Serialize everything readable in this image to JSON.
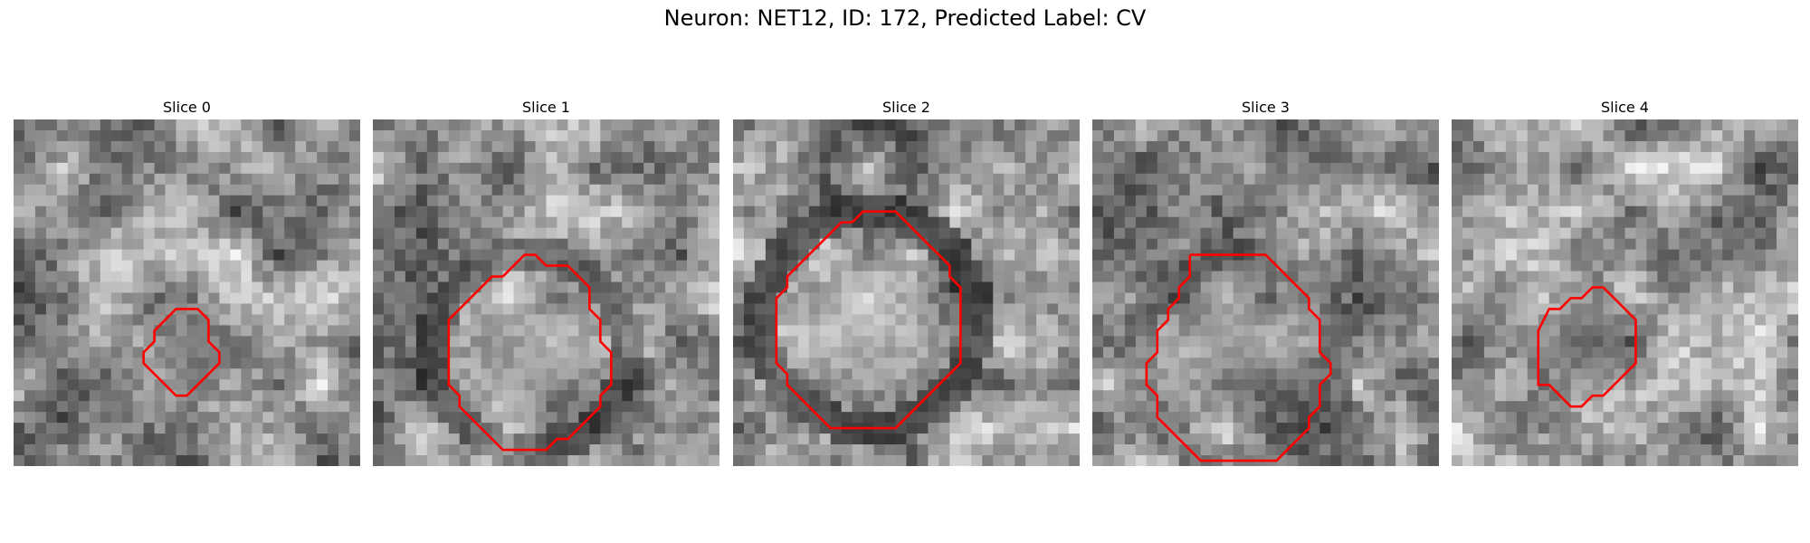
{
  "figure": {
    "title": "Neuron: NET12, ID: 172, Predicted Label: CV"
  },
  "panels": [
    {
      "title": "Slice 0",
      "contour": [
        [
          16,
          17.5
        ],
        [
          17,
          17.5
        ],
        [
          18,
          18.5
        ],
        [
          18,
          20.5
        ],
        [
          19,
          21.5
        ],
        [
          19,
          22.5
        ],
        [
          18,
          23.5
        ],
        [
          17,
          24.5
        ],
        [
          16,
          25.5
        ],
        [
          15,
          25.5
        ],
        [
          14,
          24.5
        ],
        [
          13,
          23.5
        ],
        [
          12,
          22.5
        ],
        [
          12,
          21.5
        ],
        [
          13,
          20.5
        ],
        [
          13,
          19.5
        ],
        [
          14,
          18.5
        ],
        [
          15,
          17.5
        ]
      ],
      "seed": 11
    },
    {
      "title": "Slice 1",
      "contour": [
        [
          12,
          14.5
        ],
        [
          13,
          13.5
        ],
        [
          14,
          12.5
        ],
        [
          15,
          12.5
        ],
        [
          16,
          13.5
        ],
        [
          18,
          13.5
        ],
        [
          19,
          14.5
        ],
        [
          20,
          15.5
        ],
        [
          20,
          17.5
        ],
        [
          21,
          18.5
        ],
        [
          21,
          20.5
        ],
        [
          22,
          21.5
        ],
        [
          22,
          24.5
        ],
        [
          21,
          25.5
        ],
        [
          21,
          26.5
        ],
        [
          20,
          27.5
        ],
        [
          19,
          28.5
        ],
        [
          18,
          29.5
        ],
        [
          17,
          29.5
        ],
        [
          16,
          30.5
        ],
        [
          12,
          30.5
        ],
        [
          11,
          29.5
        ],
        [
          10,
          28.5
        ],
        [
          9,
          27.5
        ],
        [
          8,
          26.5
        ],
        [
          8,
          25.5
        ],
        [
          7,
          24.5
        ],
        [
          7,
          18.5
        ],
        [
          8,
          17.5
        ],
        [
          9,
          16.5
        ],
        [
          10,
          15.5
        ],
        [
          11,
          14.5
        ]
      ],
      "seed": 23
    },
    {
      "title": "Slice 2",
      "contour": [
        [
          11,
          9.5
        ],
        [
          12,
          8.5
        ],
        [
          15,
          8.5
        ],
        [
          16,
          9.5
        ],
        [
          17,
          10.5
        ],
        [
          18,
          11.5
        ],
        [
          19,
          12.5
        ],
        [
          20,
          13.5
        ],
        [
          20,
          14.5
        ],
        [
          21,
          15.5
        ],
        [
          21,
          22.5
        ],
        [
          20,
          23.5
        ],
        [
          19,
          24.5
        ],
        [
          18,
          25.5
        ],
        [
          17,
          26.5
        ],
        [
          16,
          27.5
        ],
        [
          15,
          28.5
        ],
        [
          9,
          28.5
        ],
        [
          8,
          27.5
        ],
        [
          7,
          26.5
        ],
        [
          6,
          25.5
        ],
        [
          5,
          24.5
        ],
        [
          5,
          23.5
        ],
        [
          4,
          22.5
        ],
        [
          4,
          16.5
        ],
        [
          5,
          15.5
        ],
        [
          5,
          14.5
        ],
        [
          6,
          13.5
        ],
        [
          7,
          12.5
        ],
        [
          8,
          11.5
        ],
        [
          9,
          10.5
        ],
        [
          10,
          9.5
        ]
      ],
      "seed": 37
    },
    {
      "title": "Slice 3",
      "contour": [
        [
          9,
          12.5
        ],
        [
          16,
          12.5
        ],
        [
          17,
          13.5
        ],
        [
          18,
          14.5
        ],
        [
          19,
          15.5
        ],
        [
          20,
          16.5
        ],
        [
          20,
          17.5
        ],
        [
          21,
          18.5
        ],
        [
          21,
          21.5
        ],
        [
          22,
          22.5
        ],
        [
          22,
          23.5
        ],
        [
          21,
          24.5
        ],
        [
          21,
          26.5
        ],
        [
          20,
          27.5
        ],
        [
          20,
          28.5
        ],
        [
          19,
          29.5
        ],
        [
          18,
          30.5
        ],
        [
          17,
          31.5
        ],
        [
          10,
          31.5
        ],
        [
          9,
          30.5
        ],
        [
          8,
          29.5
        ],
        [
          7,
          28.5
        ],
        [
          6,
          27.5
        ],
        [
          6,
          25.5
        ],
        [
          5,
          24.5
        ],
        [
          5,
          22.5
        ],
        [
          6,
          21.5
        ],
        [
          6,
          19.5
        ],
        [
          7,
          18.5
        ],
        [
          7,
          17.5
        ],
        [
          8,
          16.5
        ],
        [
          8,
          15.5
        ],
        [
          9,
          14.5
        ]
      ],
      "seed": 49
    },
    {
      "title": "Slice 4",
      "contour": [
        [
          14,
          15.5
        ],
        [
          15,
          16.5
        ],
        [
          16,
          17.5
        ],
        [
          17,
          18.5
        ],
        [
          17,
          22.5
        ],
        [
          16,
          23.5
        ],
        [
          15,
          24.5
        ],
        [
          14,
          25.5
        ],
        [
          13,
          25.5
        ],
        [
          12,
          26.5
        ],
        [
          11,
          26.5
        ],
        [
          10,
          25.5
        ],
        [
          9,
          24.5
        ],
        [
          8,
          24.5
        ],
        [
          8,
          19.5
        ],
        [
          9,
          17.5
        ],
        [
          10,
          17.5
        ],
        [
          11,
          16.5
        ],
        [
          12,
          16.5
        ],
        [
          13,
          15.5
        ]
      ],
      "seed": 61
    }
  ],
  "colors": {
    "contour": "#ff0000"
  }
}
